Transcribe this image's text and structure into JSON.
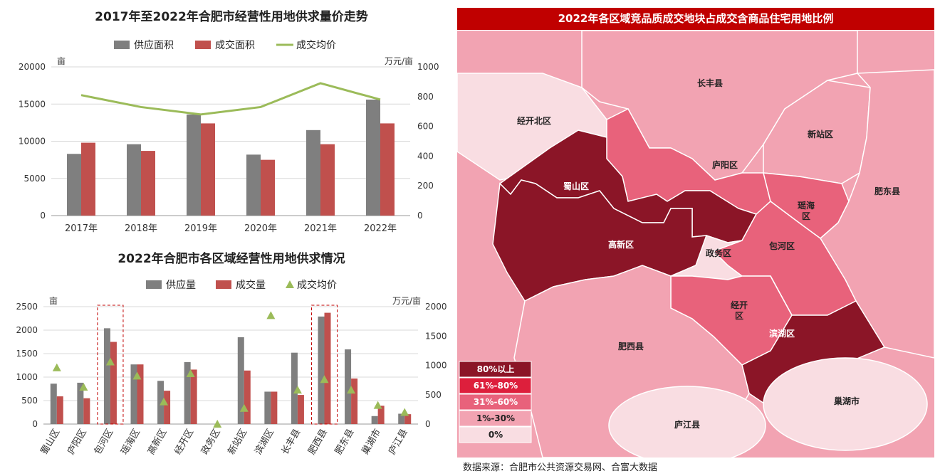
{
  "chart_data": [
    {
      "type": "bar",
      "title": "2017年至2022年合肥市经营性用地供求量价走势",
      "categories": [
        "2017年",
        "2018年",
        "2019年",
        "2020年",
        "2021年",
        "2022年"
      ],
      "series": [
        {
          "name": "供应面积",
          "type": "bar",
          "axis": "left",
          "color": "#7f7f7f",
          "values": [
            8300,
            9600,
            13600,
            8200,
            11500,
            15600
          ]
        },
        {
          "name": "成交面积",
          "type": "bar",
          "axis": "left",
          "color": "#c0504d",
          "values": [
            9800,
            8700,
            12400,
            7500,
            9600,
            12400
          ]
        },
        {
          "name": "成交均价",
          "type": "line",
          "axis": "right",
          "color": "#9bbb59",
          "values": [
            810,
            730,
            680,
            730,
            890,
            780
          ]
        }
      ],
      "ylabel_left": "亩",
      "ylabel_right": "万元/亩",
      "ylim_left": [
        0,
        20000
      ],
      "ylim_right": [
        0,
        1000
      ],
      "yticks_left": [
        "0",
        "5000",
        "10000",
        "15000",
        "20000"
      ],
      "yticks_right": [
        "0",
        "200",
        "400",
        "600",
        "800",
        "1000"
      ],
      "grid": true,
      "legend": "top"
    },
    {
      "type": "bar",
      "title": "2022年合肥市各区域经营性用地供求情况",
      "categories": [
        "蜀山区",
        "庐阳区",
        "包河区",
        "瑶海区",
        "高新区",
        "经开区",
        "政务区",
        "新站区",
        "滨湖区",
        "长丰县",
        "肥西县",
        "肥东县",
        "巢湖市",
        "庐江县"
      ],
      "series": [
        {
          "name": "供应量",
          "type": "bar",
          "axis": "left",
          "color": "#7f7f7f",
          "values": [
            860,
            880,
            2040,
            1270,
            920,
            1320,
            0,
            1850,
            690,
            1520,
            2290,
            1590,
            170,
            220
          ]
        },
        {
          "name": "成交量",
          "type": "bar",
          "axis": "left",
          "color": "#c0504d",
          "values": [
            590,
            550,
            1750,
            1270,
            710,
            1160,
            0,
            1140,
            690,
            620,
            2370,
            970,
            390,
            210
          ]
        },
        {
          "name": "成交均价",
          "type": "scatter",
          "axis": "right",
          "color": "#9bbb59",
          "values": [
            960,
            630,
            1060,
            820,
            380,
            860,
            0,
            270,
            1850,
            580,
            760,
            580,
            320,
            200
          ]
        }
      ],
      "ylabel_left": "亩",
      "ylabel_right": "万元/亩",
      "ylim_left": [
        0,
        2500
      ],
      "ylim_right": [
        0,
        2000
      ],
      "yticks_left": [
        "0",
        "500",
        "1000",
        "1500",
        "2000",
        "2500"
      ],
      "yticks_right": [
        "0",
        "500",
        "1000",
        "1500",
        "2000"
      ],
      "highlighted": [
        "包河区",
        "肥西县"
      ],
      "grid": true,
      "legend": "top"
    }
  ],
  "map": {
    "title": "2022年各区域竞品质成交地块占成交含商品住宅用地比例",
    "regions": [
      {
        "name": "长丰县",
        "level": "1%-30%"
      },
      {
        "name": "经开北区",
        "level": "0%"
      },
      {
        "name": "新站区",
        "level": "1%-30%"
      },
      {
        "name": "庐阳区",
        "level": "31%-60%"
      },
      {
        "name": "蜀山区",
        "level": "80%以上"
      },
      {
        "name": "瑶海区",
        "level": "31%-60%"
      },
      {
        "name": "肥东县",
        "level": "1%-30%"
      },
      {
        "name": "高新区",
        "level": "80%以上"
      },
      {
        "name": "包河区",
        "level": "31%-60%"
      },
      {
        "name": "政务区",
        "level": "0%"
      },
      {
        "name": "经开区",
        "level": "31%-60%"
      },
      {
        "name": "滨湖区",
        "level": "80%以上"
      },
      {
        "name": "肥西县",
        "level": "1%-30%"
      },
      {
        "name": "庐江县",
        "level": "0%"
      },
      {
        "name": "巢湖市",
        "level": "0%"
      }
    ],
    "legend": [
      {
        "label": "80%以上",
        "color": "#8b1527"
      },
      {
        "label": "61%-80%",
        "color": "#dd1f3c"
      },
      {
        "label": "31%-60%",
        "color": "#e8627b"
      },
      {
        "label": "1%-30%",
        "color": "#f2a3b2"
      },
      {
        "label": "0%",
        "color": "#f9dde2"
      }
    ],
    "colors": {
      "outside": "#f2a3b2",
      "border": "#ffffff"
    }
  },
  "source": "数据来源：合肥市公共资源交易网、合富大数据"
}
